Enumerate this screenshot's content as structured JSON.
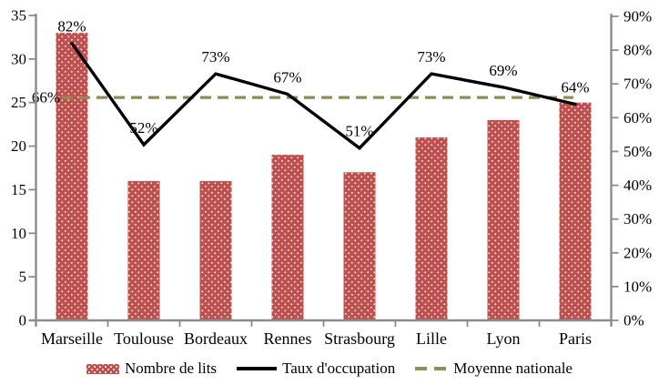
{
  "chart_data": {
    "type": "combo",
    "title": "",
    "categories": [
      "Marseille",
      "Toulouse",
      "Bordeaux",
      "Rennes",
      "Strasbourg",
      "Lille",
      "Lyon",
      "Paris"
    ],
    "series": [
      {
        "name": "Nombre de lits",
        "chart_type": "bar",
        "axis": "left",
        "values": [
          33,
          16,
          16,
          19,
          17,
          21,
          23,
          25
        ]
      },
      {
        "name": "Taux d'occupation",
        "chart_type": "line",
        "axis": "right",
        "values": [
          82,
          52,
          73,
          67,
          51,
          73,
          69,
          64
        ],
        "point_labels": [
          "82%",
          "52%",
          "73%",
          "67%",
          "51%",
          "73%",
          "69%",
          "64%"
        ]
      },
      {
        "name": "Moyenne nationale",
        "chart_type": "constant-dashed-line",
        "axis": "right",
        "value": 66,
        "label": "66%"
      }
    ],
    "left_axis": {
      "min": 0,
      "max": 35,
      "step": 5,
      "tick_labels": [
        "0",
        "5",
        "10",
        "15",
        "20",
        "25",
        "30",
        "35"
      ]
    },
    "right_axis": {
      "min": 0,
      "max": 90,
      "step": 10,
      "tick_labels": [
        "0%",
        "10%",
        "20%",
        "30%",
        "40%",
        "50%",
        "60%",
        "70%",
        "80%",
        "90%"
      ]
    },
    "grid": false,
    "legend": {
      "position": "bottom",
      "items": [
        {
          "label": "Nombre de lits",
          "swatch": "dotted-bar"
        },
        {
          "label": "Taux d'occupation",
          "swatch": "solid-line"
        },
        {
          "label": "Moyenne nationale",
          "swatch": "dashed-line"
        }
      ]
    }
  },
  "colors": {
    "bar": "#c0504d",
    "bar_dots": "#ffffff",
    "line": "#000000",
    "average": "#948a54",
    "axis": "#8c8c8c",
    "text": "#000000",
    "background": "#ffffff"
  }
}
